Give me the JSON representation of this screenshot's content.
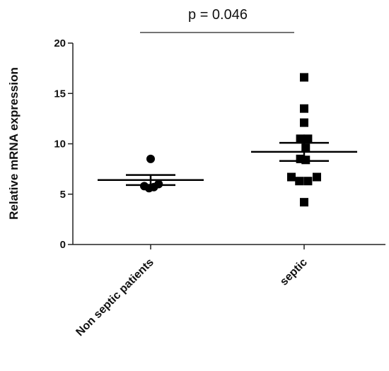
{
  "chart_data": {
    "type": "scatter",
    "title": "",
    "xlabel": "",
    "ylabel": "Relative mRNA expression",
    "ylim": [
      0,
      20
    ],
    "yticks": [
      0,
      5,
      10,
      15,
      20
    ],
    "grid": false,
    "legend": "none",
    "categories": [
      "Non septic patients",
      "septic"
    ],
    "series": [
      {
        "category": "Non septic patients",
        "marker": "circle",
        "points": [
          {
            "x": 0.0,
            "y": 8.5
          },
          {
            "x": -0.2,
            "y": 5.8
          },
          {
            "x": -0.05,
            "y": 5.6
          },
          {
            "x": 0.1,
            "y": 5.7
          },
          {
            "x": 0.25,
            "y": 6.0
          }
        ],
        "mean": 6.4,
        "sem_low": 5.9,
        "sem_high": 6.9
      },
      {
        "category": "septic",
        "marker": "square",
        "points": [
          {
            "x": 0.0,
            "y": 16.6
          },
          {
            "x": 0.0,
            "y": 13.5
          },
          {
            "x": 0.0,
            "y": 12.1
          },
          {
            "x": -0.12,
            "y": 10.5
          },
          {
            "x": 0.12,
            "y": 10.5
          },
          {
            "x": 0.05,
            "y": 9.6
          },
          {
            "x": -0.12,
            "y": 8.5
          },
          {
            "x": 0.05,
            "y": 8.4
          },
          {
            "x": -0.4,
            "y": 6.7
          },
          {
            "x": -0.15,
            "y": 6.3
          },
          {
            "x": 0.12,
            "y": 6.3
          },
          {
            "x": 0.4,
            "y": 6.7
          },
          {
            "x": 0.0,
            "y": 4.2
          }
        ],
        "mean": 9.2,
        "sem_low": 8.3,
        "sem_high": 10.1
      }
    ],
    "annotation": {
      "text": "p = 0.046"
    }
  }
}
